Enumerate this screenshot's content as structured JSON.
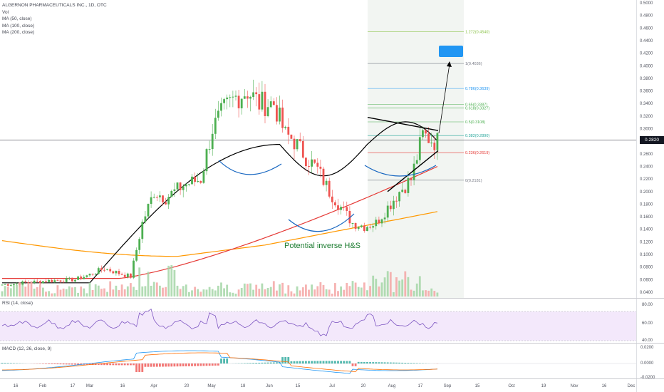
{
  "legend": {
    "title": "ALGERNON PHARMACEUTICALS INC., 1D, OTC",
    "vol": "Vol",
    "ma1": "MA (50, close)",
    "ma2": "MA (100, close)",
    "ma3": "MA (200, close)"
  },
  "rsi_label": "RSI (14, close)",
  "macd_label": "MACD (12, 26, close, 9)",
  "current_price": "0.2820",
  "annotation": "Potential inverse H&S",
  "price_axis": [
    "0.5000",
    "0.4800",
    "0.4600",
    "0.4400",
    "0.4200",
    "0.4000",
    "0.3800",
    "0.3600",
    "0.3400",
    "0.3200",
    "0.3000",
    "0.2800",
    "0.2600",
    "0.2400",
    "0.2200",
    "0.2000",
    "0.1800",
    "0.1600",
    "0.1400",
    "0.1200",
    "0.1000",
    "0.0800",
    "0.0600",
    "0.0400"
  ],
  "rsi_axis": [
    "80.00",
    "60.00",
    "40.00"
  ],
  "macd_axis": [
    "0.0200",
    "0.0000",
    "-0.0200"
  ],
  "time_axis": [
    "16",
    "Feb",
    "17",
    "Mar",
    "16",
    "Apr",
    "20",
    "May",
    "18",
    "Jun",
    "15",
    "Jul",
    "20",
    "Aug",
    "17",
    "Sep",
    "15",
    "Oct",
    "19",
    "Nov",
    "16",
    "Dec"
  ],
  "fib_levels": [
    {
      "label": "1.272(0.4540)",
      "value": 0.454,
      "color": "#8bc34a"
    },
    {
      "label": "1(0.4036)",
      "value": 0.4036,
      "color": "#787b86"
    },
    {
      "label": "0.786(0.3639)",
      "value": 0.3639,
      "color": "#2196f3"
    },
    {
      "label": "0.65(0.3387)",
      "value": 0.3387,
      "color": "#4caf50"
    },
    {
      "label": "0.618(0.3327)",
      "value": 0.3327,
      "color": "#4caf50"
    },
    {
      "label": "0.5(0.3108)",
      "value": 0.3108,
      "color": "#4caf50"
    },
    {
      "label": "0.382(0.2890)",
      "value": 0.289,
      "color": "#26a69a"
    },
    {
      "label": "0.236(0.2619)",
      "value": 0.2619,
      "color": "#e53935"
    },
    {
      "label": "0(0.2181)",
      "value": 0.2181,
      "color": "#787b86"
    }
  ],
  "colors": {
    "up": "#4caf50",
    "down": "#ef5350",
    "ma50": "#000000",
    "ma100": "#e53935",
    "ma200": "#ff9800",
    "rsi": "#7e57c2",
    "macd": "#2196f3",
    "signal": "#ff6d00"
  }
}
